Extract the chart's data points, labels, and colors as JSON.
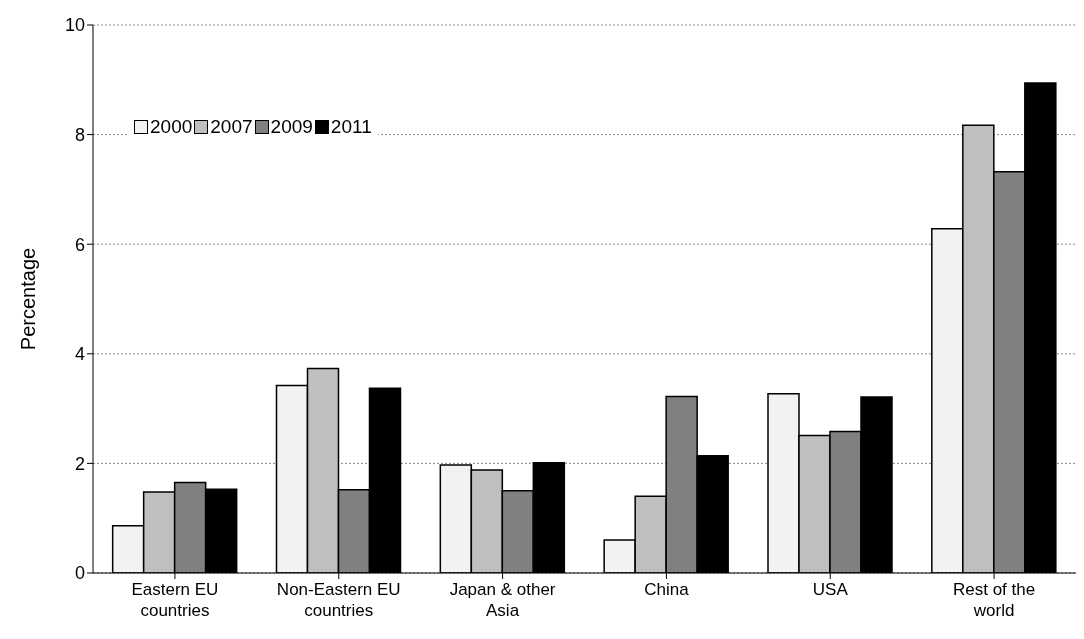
{
  "chart_data": {
    "type": "bar",
    "ylabel": "Percentage",
    "categories": [
      "Eastern EU countries",
      "Non-Eastern EU countries",
      "Japan & other Asia",
      "China",
      "USA",
      "Rest of the world"
    ],
    "series": [
      {
        "name": "2000",
        "color": "#f2f2f2",
        "values": [
          0.86,
          3.42,
          1.97,
          0.6,
          3.27,
          6.28
        ]
      },
      {
        "name": "2007",
        "color": "#bfbfbf",
        "values": [
          1.48,
          3.73,
          1.88,
          1.4,
          2.51,
          8.17
        ]
      },
      {
        "name": "2009",
        "color": "#808080",
        "values": [
          1.65,
          1.52,
          1.5,
          3.22,
          2.58,
          7.32
        ]
      },
      {
        "name": "2011",
        "color": "#000000",
        "values": [
          1.53,
          3.37,
          2.01,
          2.14,
          3.21,
          8.94
        ]
      }
    ],
    "ylim": [
      0,
      10
    ],
    "yticks": [
      0,
      2,
      4,
      6,
      8,
      10
    ],
    "grid": "y",
    "legend": "top left"
  }
}
